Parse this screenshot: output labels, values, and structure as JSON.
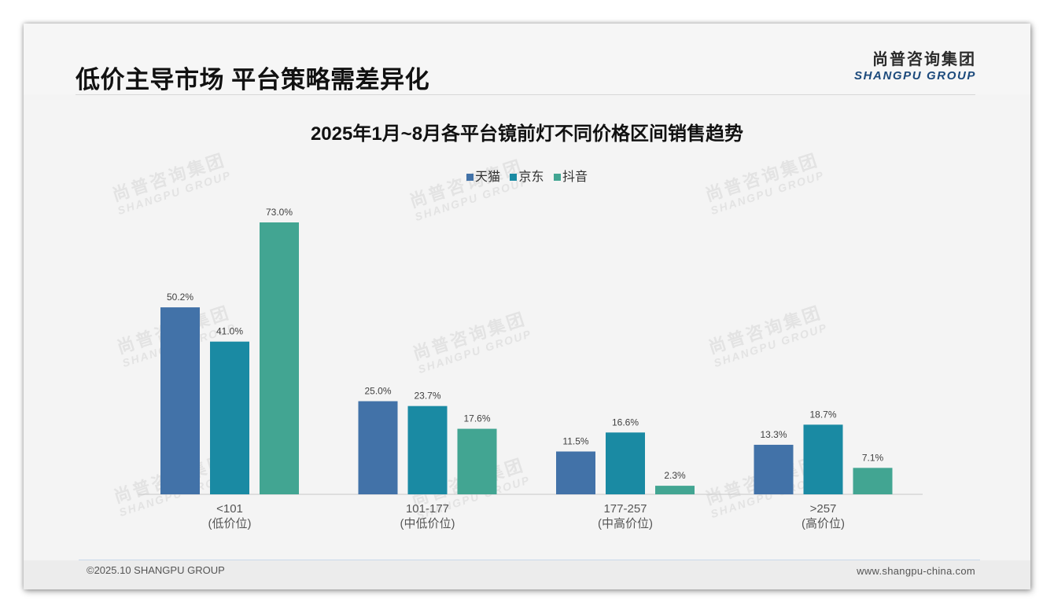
{
  "slide": {
    "title": "低价主导市场 平台策略需差异化"
  },
  "logo": {
    "cn": "尚普咨询集团",
    "en": "SHANGPU GROUP"
  },
  "watermark": {
    "cn": "尚普咨询集团",
    "en": "SHANGPU GROUP"
  },
  "colors": {
    "tmall": "#4272a8",
    "jd": "#1a8aa3",
    "douyin": "#42a592",
    "axis": "#c8c8c8"
  },
  "chart_data": {
    "type": "bar",
    "title": "2025年1月~8月各平台镜前灯不同价格区间销售趋势",
    "categories": [
      "<101",
      "101-177",
      "177-257",
      ">257"
    ],
    "category_sublabels": [
      "(低价位)",
      "(中低价位)",
      "(中高价位)",
      "(高价位)"
    ],
    "series": [
      {
        "name": "天猫",
        "values": [
          50.2,
          25.0,
          11.5,
          13.3
        ],
        "labels": [
          "50.2%",
          "25.0%",
          "11.5%",
          "13.3%"
        ]
      },
      {
        "name": "京东",
        "values": [
          41.0,
          23.7,
          16.6,
          18.7
        ],
        "labels": [
          "41.0%",
          "23.7%",
          "16.6%",
          "18.7%"
        ]
      },
      {
        "name": "抖音",
        "values": [
          73.0,
          17.6,
          2.3,
          7.1
        ],
        "labels": [
          "73.0%",
          "17.6%",
          "2.3%",
          "7.1%"
        ]
      }
    ],
    "unit": "%",
    "ylim": [
      0,
      73
    ],
    "xlabel": "",
    "ylabel": "",
    "grid": false,
    "legend": "top-center"
  },
  "footer": {
    "copyright": "©2025.10 SHANGPU GROUP",
    "website": "www.shangpu-china.com"
  }
}
